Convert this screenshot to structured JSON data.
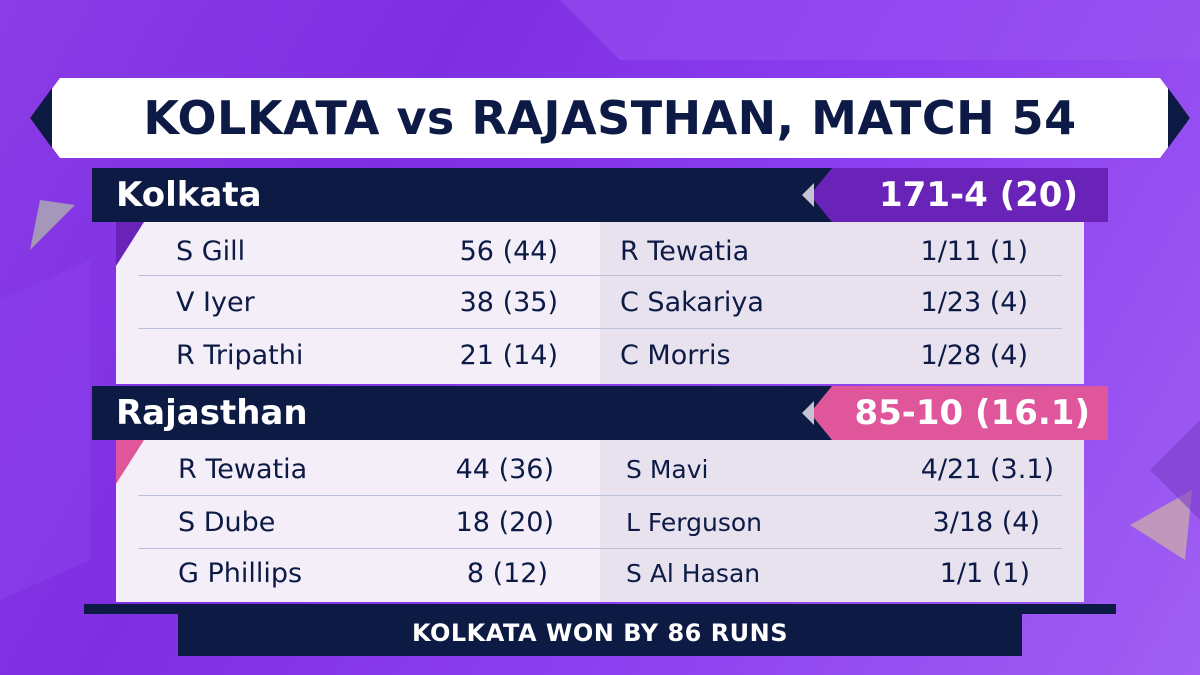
{
  "title": "KOLKATA vs RAJASTHAN, MATCH 54",
  "colors": {
    "navy": "#0d1a44",
    "kolkata_accent": "#6a23b8",
    "rajasthan_accent": "#e0569b",
    "banner": "#ffffff"
  },
  "innings": [
    {
      "team": "Kolkata",
      "score": "171-4 (20)",
      "batting": [
        {
          "name": "S Gill",
          "figures": "56 (44)"
        },
        {
          "name": "V Iyer",
          "figures": "38 (35)"
        },
        {
          "name": "R Tripathi",
          "figures": "21 (14)"
        }
      ],
      "bowling": [
        {
          "name": "R Tewatia",
          "figures": "1/11 (1)"
        },
        {
          "name": "C Sakariya",
          "figures": "1/23 (4)"
        },
        {
          "name": "C Morris",
          "figures": "1/28 (4)"
        }
      ]
    },
    {
      "team": "Rajasthan",
      "score": "85-10 (16.1)",
      "batting": [
        {
          "name": "R Tewatia",
          "figures": "44 (36)"
        },
        {
          "name": "S Dube",
          "figures": "18 (20)"
        },
        {
          "name": "G Phillips",
          "figures": "8 (12)"
        }
      ],
      "bowling": [
        {
          "name": "S Mavi",
          "figures": "4/21 (3.1)"
        },
        {
          "name": "L Ferguson",
          "figures": "3/18 (4)"
        },
        {
          "name": "S Al Hasan",
          "figures": "1/1 (1)"
        }
      ]
    }
  ],
  "result": "KOLKATA WON BY 86 RUNS"
}
